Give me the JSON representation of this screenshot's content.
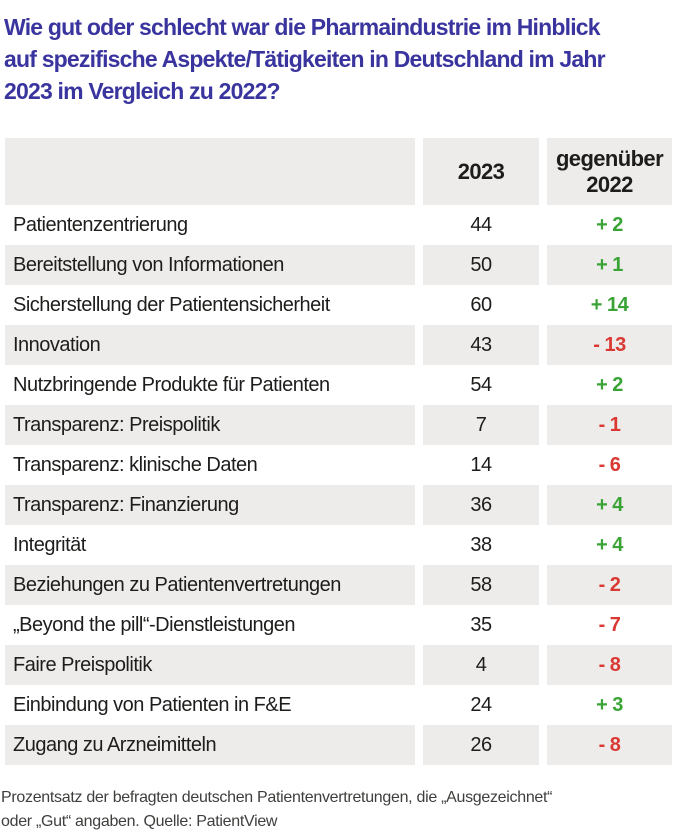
{
  "title": {
    "lines": [
      "Wie gut oder schlecht war die Pharmaindustrie im Hinblick",
      "auf spezifische Aspekte/Tätigkeiten in Deutschland im Jahr",
      "2023 im Vergleich zu 2022?"
    ]
  },
  "table": {
    "header": {
      "col_year": "2023",
      "col_change": "gegenüber 2022"
    },
    "rows": [
      {
        "label": "Patientenzentrierung",
        "value": "44",
        "change": "+ 2",
        "trend": "up"
      },
      {
        "label": "Bereitstellung von Informationen",
        "value": "50",
        "change": "+ 1",
        "trend": "up"
      },
      {
        "label": "Sicherstellung der Patientensicherheit",
        "value": "60",
        "change": "+ 14",
        "trend": "up"
      },
      {
        "label": "Innovation",
        "value": "43",
        "change": "- 13",
        "trend": "down"
      },
      {
        "label": "Nutzbringende Produkte für Patienten",
        "value": "54",
        "change": "+ 2",
        "trend": "up"
      },
      {
        "label": "Transparenz: Preispolitik",
        "value": "7",
        "change": "- 1",
        "trend": "down"
      },
      {
        "label": "Transparenz: klinische Daten",
        "value": "14",
        "change": "- 6",
        "trend": "down"
      },
      {
        "label": "Transparenz: Finanzierung",
        "value": "36",
        "change": "+ 4",
        "trend": "up"
      },
      {
        "label": "Integrität",
        "value": "38",
        "change": "+ 4",
        "trend": "up"
      },
      {
        "label": "Beziehungen zu Patientenvertretungen",
        "value": "58",
        "change": "- 2",
        "trend": "down"
      },
      {
        "label": "„Beyond the pill“-Dienstleistungen",
        "value": "35",
        "change": "- 7",
        "trend": "down"
      },
      {
        "label": "Faire Preispolitik",
        "value": "4",
        "change": "- 8",
        "trend": "down"
      },
      {
        "label": "Einbindung von Patienten in F&E",
        "value": "24",
        "change": "+ 3",
        "trend": "up"
      },
      {
        "label": "Zugang zu Arzneimitteln",
        "value": "26",
        "change": "- 8",
        "trend": "down"
      }
    ]
  },
  "footer": {
    "lines": [
      "Prozentsatz der befragten deutschen Patientenvertretungen, die „Ausgezeichnet“",
      "oder „Gut“ angaben. Quelle: PatientView"
    ]
  },
  "colors": {
    "title": "#3a349e",
    "row_alt_background": "#edecea",
    "text": "#1d1d1b",
    "positive": "#3aa336",
    "negative": "#da3832",
    "footnote": "#3f3e3c"
  },
  "chart_data": {
    "type": "table",
    "title": "Wie gut oder schlecht war die Pharmaindustrie im Hinblick auf spezifische Aspekte/Tätigkeiten in Deutschland im Jahr 2023 im Vergleich zu 2022?",
    "categories": [
      "Patientenzentrierung",
      "Bereitstellung von Informationen",
      "Sicherstellung der Patientensicherheit",
      "Innovation",
      "Nutzbringende Produkte für Patienten",
      "Transparenz: Preispolitik",
      "Transparenz: klinische Daten",
      "Transparenz: Finanzierung",
      "Integrität",
      "Beziehungen zu Patientenvertretungen",
      "„Beyond the pill“-Dienstleistungen",
      "Faire Preispolitik",
      "Einbindung von Patienten in F&E",
      "Zugang zu Arzneimitteln"
    ],
    "series": [
      {
        "name": "2023",
        "values": [
          44,
          50,
          60,
          43,
          54,
          7,
          14,
          36,
          38,
          58,
          35,
          4,
          24,
          26
        ]
      },
      {
        "name": "gegenüber 2022",
        "values": [
          2,
          1,
          14,
          -13,
          2,
          -1,
          -6,
          4,
          4,
          -2,
          -7,
          -8,
          3,
          -8
        ]
      }
    ],
    "note": "Prozentsatz der befragten deutschen Patientenvertretungen, die „Ausgezeichnet“ oder „Gut“ angaben. Quelle: PatientView"
  }
}
